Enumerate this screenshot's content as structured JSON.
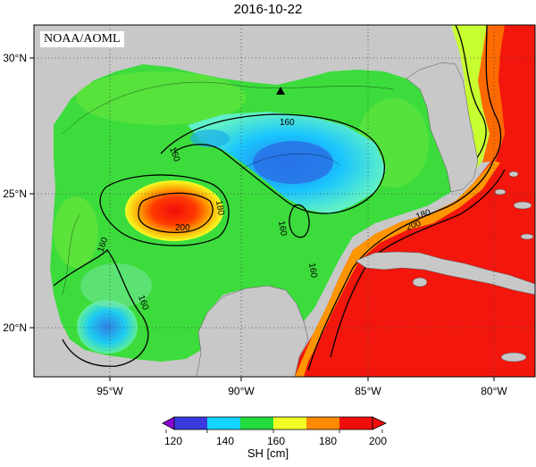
{
  "title": "2016-10-22",
  "credit": "NOAA/AOML",
  "colorbar": {
    "title": "SH [cm]",
    "tick_labels": [
      "120",
      "140",
      "160",
      "180",
      "200"
    ],
    "colors": [
      "#8a00d6",
      "#3a3ae0",
      "#15d4ff",
      "#24dc3c",
      "#f0ff24",
      "#ff8a00",
      "#f20c0c"
    ]
  },
  "map": {
    "lon_labels": [
      "95°W",
      "90°W",
      "85°W",
      "80°W"
    ],
    "lat_labels": [
      "30°N",
      "25°N",
      "20°N"
    ],
    "contour_labels": [
      "160",
      "160",
      "160",
      "160",
      "160",
      "160",
      "180",
      "200",
      "180",
      "200"
    ],
    "marker": "triangle",
    "land_color": "#c8c8c8"
  }
}
